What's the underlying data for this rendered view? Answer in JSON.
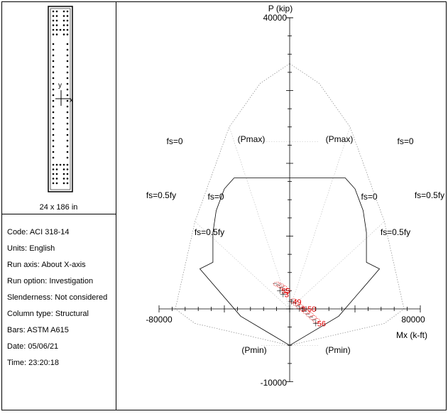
{
  "section": {
    "caption": "24 x 186 in",
    "axis_y": "y",
    "axis_x": "x"
  },
  "info": [
    {
      "label": "Code:",
      "value": "ACI 318-14"
    },
    {
      "label": "Units:",
      "value": "English"
    },
    {
      "label": "Run axis:",
      "value": "About X-axis"
    },
    {
      "label": "Run option:",
      "value": "Investigation"
    },
    {
      "label": "Slenderness:",
      "value": "Not considered"
    },
    {
      "label": "Column type:",
      "value": "Structural"
    },
    {
      "label": "Bars:",
      "value": "ASTM A615"
    },
    {
      "label": "Date:",
      "value": "05/06/21"
    },
    {
      "label": "Time:",
      "value": "23:20:18"
    }
  ],
  "chart_data": {
    "type": "interaction-diagram",
    "ylabel": "P (kip)",
    "xlabel": "Mx (k-ft)",
    "xlim": [
      -80000,
      80000
    ],
    "ylim": [
      -10000,
      40000
    ],
    "tick_labels": {
      "y_top": "40000",
      "y_bottom": "-10000",
      "x_left": "-80000",
      "x_right": "80000"
    },
    "annotations": {
      "pmax": "(Pmax)",
      "pmin": "(Pmin)",
      "fs0": "fs=0",
      "fs05": "fs=0.5fy"
    },
    "outer_curve": [
      [
        0,
        33700
      ],
      [
        -18000,
        31000
      ],
      [
        -37000,
        25000
      ],
      [
        -58000,
        12000
      ],
      [
        -70000,
        0
      ],
      [
        -58000,
        -2000
      ],
      [
        0,
        -5000
      ],
      [
        58000,
        -2000
      ],
      [
        70000,
        0
      ],
      [
        58000,
        12000
      ],
      [
        37000,
        25000
      ],
      [
        18000,
        31000
      ],
      [
        0,
        33700
      ]
    ],
    "design_curve": [
      [
        -34000,
        18000
      ],
      [
        34000,
        18000
      ],
      [
        40000,
        16500
      ],
      [
        45000,
        13500
      ],
      [
        47000,
        10500
      ],
      [
        47000,
        6400
      ],
      [
        55000,
        5500
      ],
      [
        30000,
        -1000
      ],
      [
        0,
        -5000
      ],
      [
        -30000,
        -1000
      ],
      [
        -55000,
        5500
      ],
      [
        -47000,
        6400
      ],
      [
        -47000,
        10500
      ],
      [
        -45000,
        13500
      ],
      [
        -40000,
        16500
      ],
      [
        -34000,
        18000
      ]
    ],
    "points": [
      {
        "label": "55",
        "mx": -6000,
        "p": 2500
      },
      {
        "label": "3",
        "mx": -4000,
        "p": 2000
      },
      {
        "label": "49",
        "mx": 1000,
        "p": 1000
      },
      {
        "label": "3",
        "mx": 6000,
        "p": 0
      },
      {
        "label": "50",
        "mx": 10000,
        "p": 0
      },
      {
        "label": "56",
        "mx": 16000,
        "p": -2000
      }
    ]
  }
}
